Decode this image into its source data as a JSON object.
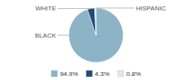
{
  "chart_data": {
    "type": "pie",
    "categories": [
      "BLACK",
      "WHITE",
      "HISPANIC"
    ],
    "values": [
      94.9,
      4.3,
      0.8
    ],
    "value_labels": [
      "94.9%",
      "4.3%",
      "0.8%"
    ],
    "colors": [
      "#8db3c7",
      "#1f4e79",
      "#dce8f0"
    ],
    "legend": "bottom"
  }
}
